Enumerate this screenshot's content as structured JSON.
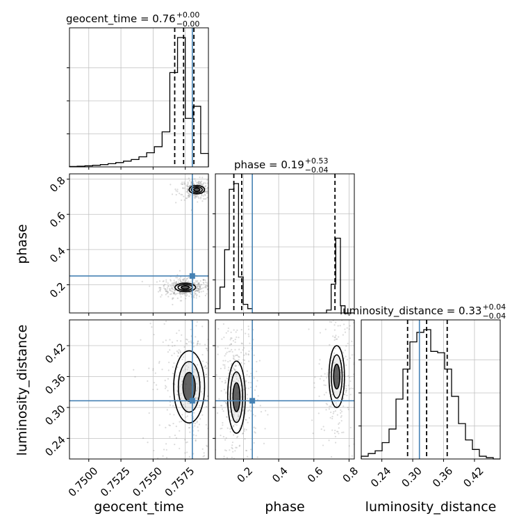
{
  "chart_data": {
    "type": "corner",
    "parameters": [
      "geocent_time",
      "phase",
      "luminosity_distance"
    ],
    "axis_labels": {
      "geocent_time": "geocent_time",
      "phase": "phase",
      "luminosity_distance": "luminosity_distance"
    },
    "titles": [
      {
        "param": "geocent_time",
        "main": "geocent_time = 0.76",
        "sup": "+0.00",
        "sub": "−0.00"
      },
      {
        "param": "phase",
        "main": "phase = 0.19",
        "sup": "+0.53",
        "sub": "−0.04"
      },
      {
        "param": "luminosity_distance",
        "main": "luminosity_distance = 0.33",
        "sup": "+0.04",
        "sub": "−0.04"
      }
    ],
    "ranges": {
      "geocent_time": [
        0.7485,
        0.7593
      ],
      "phase": [
        0.04,
        0.83
      ],
      "luminosity_distance": [
        0.2,
        0.47
      ]
    },
    "ticks": {
      "geocent_time": [
        "0.7500",
        "0.7525",
        "0.7550",
        "0.7575"
      ],
      "phase": [
        "0.2",
        "0.4",
        "0.6",
        "0.8"
      ],
      "luminosity_distance": [
        "0.24",
        "0.30",
        "0.36",
        "0.42"
      ]
    },
    "ticks_2d_y_phase": [
      "0.2",
      "0.4",
      "0.6",
      "0.8"
    ],
    "truths": {
      "geocent_time": 0.75805,
      "phase": 0.25,
      "luminosity_distance": 0.313
    },
    "quantiles": {
      "geocent_time": [
        0.75668,
        0.75737,
        0.75817
      ],
      "phase": [
        0.145,
        0.19,
        0.72
      ],
      "luminosity_distance": [
        0.29,
        0.327,
        0.367
      ]
    },
    "histograms": {
      "geocent_time": {
        "edges": [
          0.7485,
          0.7491,
          0.7497,
          0.7503,
          0.7509,
          0.7515,
          0.7521,
          0.7527,
          0.7533,
          0.7539,
          0.7545,
          0.7551,
          0.7557,
          0.7563,
          0.7569,
          0.7575,
          0.7581,
          0.7587,
          0.7593
        ],
        "counts": [
          0.003,
          0.005,
          0.008,
          0.012,
          0.017,
          0.024,
          0.032,
          0.043,
          0.055,
          0.075,
          0.105,
          0.15,
          0.26,
          0.7,
          0.96,
          0.36,
          0.45,
          0.1
        ]
      },
      "phase": {
        "edges": [
          0.04,
          0.0663,
          0.0927,
          0.119,
          0.1453,
          0.1717,
          0.198,
          0.2243,
          0.2507,
          0.277,
          0.3033,
          0.3297,
          0.356,
          0.3823,
          0.4087,
          0.435,
          0.4613,
          0.4877,
          0.514,
          0.5403,
          0.5667,
          0.593,
          0.6193,
          0.6457,
          0.672,
          0.6983,
          0.7247,
          0.751,
          0.7773,
          0.8037,
          0.83
        ],
        "counts": [
          0.03,
          0.18,
          0.44,
          0.86,
          0.9,
          0.25,
          0.06,
          0.03,
          0.0,
          0.0,
          0.0,
          0.0,
          0.0,
          0.0,
          0.0,
          0.0,
          0.0,
          0.0,
          0.0,
          0.0,
          0.0,
          0.0,
          0.0,
          0.0,
          0.02,
          0.2,
          0.52,
          0.05,
          0.0,
          0.0
        ]
      },
      "luminosity_distance": {
        "edges": [
          0.2,
          0.2135,
          0.227,
          0.2405,
          0.254,
          0.2675,
          0.281,
          0.2945,
          0.308,
          0.3215,
          0.335,
          0.3485,
          0.362,
          0.3755,
          0.389,
          0.4025,
          0.416,
          0.4295,
          0.443,
          0.4565,
          0.47
        ],
        "counts": [
          0.02,
          0.04,
          0.06,
          0.12,
          0.22,
          0.44,
          0.66,
          0.86,
          0.93,
          0.95,
          0.79,
          0.78,
          0.66,
          0.46,
          0.26,
          0.14,
          0.07,
          0.02,
          0.01,
          0.0
        ]
      }
    },
    "density_2d": [
      {
        "x": "geocent_time",
        "y": "phase",
        "modes": [
          {
            "x": 0.7575,
            "y": 0.185,
            "sx": 0.0004,
            "sy": 0.012,
            "level": 1.0
          },
          {
            "x": 0.7584,
            "y": 0.74,
            "sx": 0.0003,
            "sy": 0.012,
            "level": 0.7
          }
        ]
      },
      {
        "x": "geocent_time",
        "y": "luminosity_distance",
        "modes": [
          {
            "x": 0.7578,
            "y": 0.34,
            "sx": 0.0006,
            "sy": 0.035,
            "level": 1.0
          }
        ]
      },
      {
        "x": "phase",
        "y": "luminosity_distance",
        "modes": [
          {
            "x": 0.16,
            "y": 0.32,
            "sx": 0.025,
            "sy": 0.035,
            "level": 1.0
          },
          {
            "x": 0.73,
            "y": 0.36,
            "sx": 0.022,
            "sy": 0.03,
            "level": 0.6
          }
        ]
      }
    ],
    "colors": {
      "histogram": "#000000",
      "truth": "#4682b4",
      "grid": "#c0c0c0",
      "scatter": "#7f7f7f",
      "density": "#000000"
    },
    "grid": true
  }
}
